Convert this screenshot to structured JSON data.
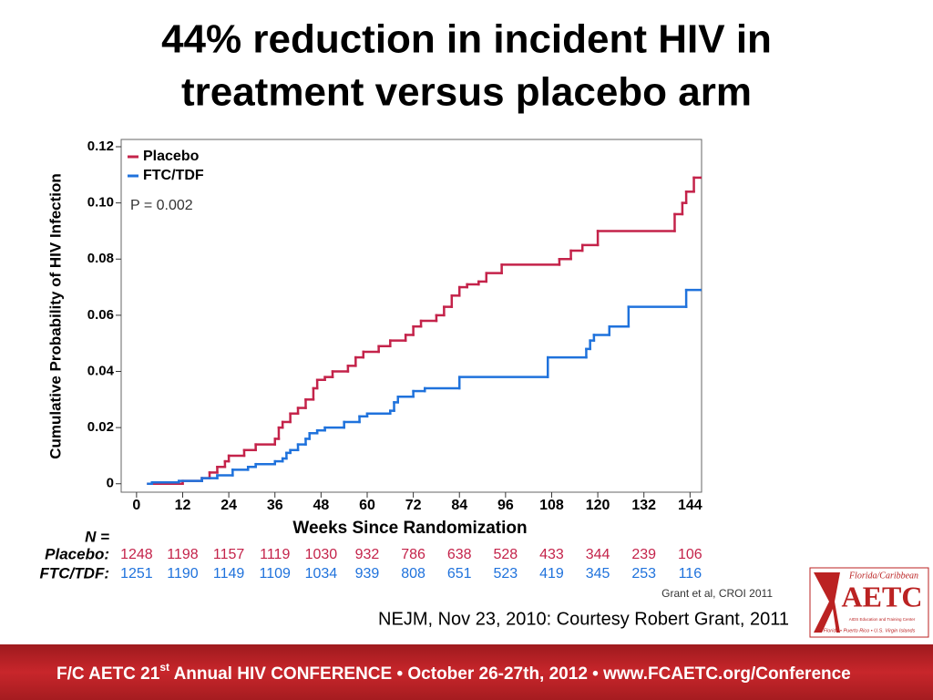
{
  "title_lines": [
    "44% reduction in incident HIV in",
    "treatment versus placebo arm"
  ],
  "chart_data": {
    "type": "step",
    "ylabel": "Cumulative Probability of HIV Infection",
    "xlabel": "Weeks Since Randomization",
    "annotation": "P = 0.002",
    "xlim": [
      -4,
      147
    ],
    "ylim": [
      -0.003,
      0.1226
    ],
    "xticks": [
      0,
      12,
      24,
      36,
      48,
      60,
      72,
      84,
      96,
      108,
      120,
      132,
      144
    ],
    "yticks": [
      0,
      0.02,
      0.04,
      0.06,
      0.08,
      {
        "value": 0.1,
        "label": "0.10"
      },
      0.12
    ],
    "legend": "upper left",
    "series": [
      {
        "name": "Placebo",
        "color": "#c4234a",
        "x": [
          3,
          12,
          17,
          19,
          21,
          23,
          24,
          28,
          31,
          36,
          37,
          38,
          40,
          42,
          44,
          46,
          47,
          49,
          51,
          55,
          57,
          59,
          63,
          66,
          70,
          72,
          74,
          78,
          80,
          82,
          84,
          86,
          89,
          91,
          95,
          110,
          113,
          116,
          120,
          140,
          142,
          143,
          145,
          147
        ],
        "values": [
          0,
          0.001,
          0.002,
          0.004,
          0.006,
          0.008,
          0.01,
          0.012,
          0.014,
          0.016,
          0.02,
          0.022,
          0.025,
          0.027,
          0.03,
          0.034,
          0.037,
          0.038,
          0.04,
          0.042,
          0.045,
          0.047,
          0.049,
          0.051,
          0.053,
          0.056,
          0.058,
          0.06,
          0.063,
          0.067,
          0.07,
          0.071,
          0.072,
          0.075,
          0.078,
          0.08,
          0.083,
          0.085,
          0.09,
          0.096,
          0.1,
          0.104,
          0.109,
          0.109
        ]
      },
      {
        "name": "FTC/TDF",
        "color": "#1f72dc",
        "x": [
          3,
          4,
          11,
          17,
          21,
          25,
          29,
          31,
          36,
          38,
          39,
          40,
          42,
          44,
          45,
          47,
          49,
          54,
          58,
          60,
          66,
          67,
          68,
          72,
          75,
          84,
          107,
          117,
          118,
          119,
          123,
          128,
          143,
          147
        ],
        "values": [
          0,
          0.0005,
          0.001,
          0.002,
          0.003,
          0.005,
          0.006,
          0.007,
          0.008,
          0.009,
          0.011,
          0.012,
          0.014,
          0.016,
          0.018,
          0.019,
          0.02,
          0.022,
          0.024,
          0.025,
          0.026,
          0.029,
          0.031,
          0.033,
          0.034,
          0.038,
          0.045,
          0.048,
          0.051,
          0.053,
          0.056,
          0.063,
          0.069,
          0.069
        ]
      }
    ],
    "risk_table": {
      "label": "N =",
      "rows": [
        {
          "name": "Placebo:",
          "color": "#c4234a",
          "values": [
            1248,
            1198,
            1157,
            1119,
            1030,
            932,
            786,
            638,
            528,
            433,
            344,
            239,
            106
          ]
        },
        {
          "name": "FTC/TDF:",
          "color": "#1f72dc",
          "values": [
            1251,
            1190,
            1149,
            1109,
            1034,
            939,
            808,
            651,
            523,
            419,
            345,
            253,
            116
          ]
        }
      ]
    },
    "source": "Grant et al, CROI 2011"
  },
  "caption": "NEJM, Nov 23, 2010: Courtesy Robert Grant, 2011",
  "logo": {
    "top": "Florida/Caribbean",
    "name": "AETC",
    "sub": "AIDS Education and Training Center",
    "bottom": "Florida • Puerto Rico • U.S. Virgin Islands"
  },
  "footer": {
    "part1": "F/C AETC 21",
    "sup": "st",
    "part2": " Annual HIV CONFERENCE • October 26-27th, 2012 • www.FCAETC.org/Conference"
  }
}
